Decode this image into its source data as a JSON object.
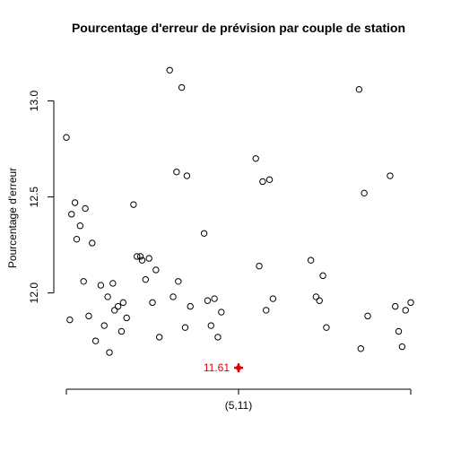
{
  "chart_data": {
    "type": "scatter",
    "title": "Pourcentage d'erreur de prévision par couple de station",
    "xlabel": "",
    "ylabel": "Pourcentage d'erreur",
    "ylim": [
      11.55,
      13.25
    ],
    "y_ticks": [
      12.0,
      12.5,
      13.0
    ],
    "y_tick_labels": [
      "12.0",
      "12.5",
      "13.0"
    ],
    "x_ticks": [
      1,
      2,
      3
    ],
    "x_tick_labels": [
      "",
      "(5,11)",
      ""
    ],
    "xlim": [
      1,
      3
    ],
    "grid": false,
    "point_color": "#000000",
    "points": [
      [
        1.0,
        12.81
      ],
      [
        1.02,
        11.86
      ],
      [
        1.03,
        12.41
      ],
      [
        1.05,
        12.47
      ],
      [
        1.06,
        12.28
      ],
      [
        1.08,
        12.35
      ],
      [
        1.1,
        12.06
      ],
      [
        1.11,
        12.44
      ],
      [
        1.13,
        11.88
      ],
      [
        1.15,
        12.26
      ],
      [
        1.17,
        11.75
      ],
      [
        1.2,
        12.04
      ],
      [
        1.22,
        11.83
      ],
      [
        1.24,
        11.98
      ],
      [
        1.25,
        11.69
      ],
      [
        1.27,
        12.05
      ],
      [
        1.28,
        11.91
      ],
      [
        1.3,
        11.93
      ],
      [
        1.32,
        11.8
      ],
      [
        1.33,
        11.95
      ],
      [
        1.35,
        11.87
      ],
      [
        1.39,
        12.46
      ],
      [
        1.41,
        12.19
      ],
      [
        1.43,
        12.19
      ],
      [
        1.44,
        12.17
      ],
      [
        1.46,
        12.07
      ],
      [
        1.48,
        12.18
      ],
      [
        1.5,
        11.95
      ],
      [
        1.52,
        12.12
      ],
      [
        1.54,
        11.77
      ],
      [
        1.6,
        13.16
      ],
      [
        1.62,
        11.98
      ],
      [
        1.64,
        12.63
      ],
      [
        1.65,
        12.06
      ],
      [
        1.67,
        13.07
      ],
      [
        1.69,
        11.82
      ],
      [
        1.7,
        12.61
      ],
      [
        1.72,
        11.93
      ],
      [
        1.8,
        12.31
      ],
      [
        1.82,
        11.96
      ],
      [
        1.84,
        11.83
      ],
      [
        1.86,
        11.97
      ],
      [
        1.88,
        11.77
      ],
      [
        1.9,
        11.9
      ],
      [
        2.1,
        12.7
      ],
      [
        2.12,
        12.14
      ],
      [
        2.14,
        12.58
      ],
      [
        2.16,
        11.91
      ],
      [
        2.18,
        12.59
      ],
      [
        2.2,
        11.97
      ],
      [
        2.42,
        12.17
      ],
      [
        2.45,
        11.98
      ],
      [
        2.47,
        11.96
      ],
      [
        2.49,
        12.09
      ],
      [
        2.51,
        11.82
      ],
      [
        2.7,
        13.06
      ],
      [
        2.71,
        11.71
      ],
      [
        2.73,
        12.52
      ],
      [
        2.75,
        11.88
      ],
      [
        2.91,
        11.93
      ],
      [
        2.93,
        11.8
      ],
      [
        2.95,
        11.72
      ],
      [
        2.88,
        12.61
      ],
      [
        2.97,
        11.91
      ],
      [
        3.0,
        11.95
      ]
    ],
    "highlight": {
      "x": 2,
      "y": 11.61,
      "label": "11.61",
      "color": "#e00000"
    }
  }
}
